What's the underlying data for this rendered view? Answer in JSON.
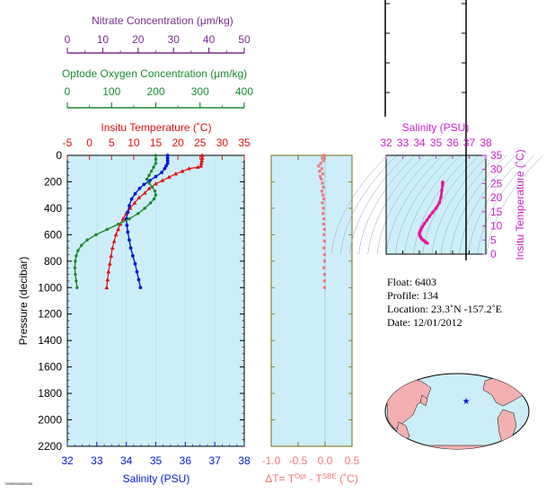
{
  "colors": {
    "panel_bg": "#cdeef8",
    "nitrate": "#7b2d8e",
    "oxygen": "#1a8a2e",
    "temperature": "#e0100f",
    "salinity": "#0019d6",
    "delta": "#f07878",
    "ts_curve": "#ee1199",
    "ts_axis": "#cc22cc",
    "olive": "#7a6a10"
  },
  "chart_data": [
    {
      "type": "line",
      "panel": "profile",
      "ylabel": "Pressure (decibar)",
      "ylim": [
        0,
        2200
      ],
      "yticks": [
        0,
        200,
        400,
        600,
        800,
        1000,
        1200,
        1400,
        1600,
        1800,
        2000,
        2200
      ],
      "axes": {
        "nitrate": {
          "label": "Nitrate Concentration (μm/kg)",
          "range": [
            0,
            50
          ],
          "ticks": [
            0,
            10,
            20,
            30,
            40,
            50
          ]
        },
        "oxygen": {
          "label": "Optode Oxygen Concentration (μm/kg)",
          "range": [
            0,
            400
          ],
          "ticks": [
            0,
            100,
            200,
            300,
            400
          ]
        },
        "temperature": {
          "label": "Insitu Temperature (˚C)",
          "range": [
            -5,
            35
          ],
          "ticks": [
            -5,
            0,
            5,
            10,
            15,
            20,
            25,
            30,
            35
          ]
        },
        "salinity": {
          "label": "Salinity (PSU)",
          "range": [
            32,
            38
          ],
          "ticks": [
            32,
            33,
            34,
            35,
            36,
            37,
            38
          ]
        }
      },
      "series": [
        {
          "key": "temperature",
          "axis": "temperature",
          "marker": "triangle",
          "points": [
            [
              25.5,
              0
            ],
            [
              25.5,
              20
            ],
            [
              25.4,
              40
            ],
            [
              25.3,
              60
            ],
            [
              25.2,
              80
            ],
            [
              24.5,
              90
            ],
            [
              22.5,
              100
            ],
            [
              21,
              120
            ],
            [
              19.5,
              140
            ],
            [
              18,
              165
            ],
            [
              16.5,
              190
            ],
            [
              15,
              215
            ],
            [
              13.5,
              250
            ],
            [
              12.5,
              285
            ],
            [
              11.2,
              320
            ],
            [
              10.2,
              360
            ],
            [
              9.2,
              400
            ],
            [
              8.3,
              440
            ],
            [
              7.6,
              480
            ],
            [
              7,
              520
            ],
            [
              6.5,
              560
            ],
            [
              6,
              600
            ],
            [
              5.6,
              650
            ],
            [
              5.2,
              700
            ],
            [
              4.9,
              760
            ],
            [
              4.6,
              820
            ],
            [
              4.3,
              880
            ],
            [
              4.1,
              940
            ],
            [
              3.9,
              1000
            ]
          ]
        },
        {
          "key": "salinity",
          "axis": "salinity",
          "marker": "dot",
          "points": [
            [
              35.4,
              0
            ],
            [
              35.4,
              20
            ],
            [
              35.4,
              40
            ],
            [
              35.4,
              60
            ],
            [
              35.35,
              80
            ],
            [
              35.3,
              100
            ],
            [
              35.2,
              130
            ],
            [
              35.0,
              160
            ],
            [
              34.8,
              190
            ],
            [
              34.6,
              220
            ],
            [
              34.45,
              250
            ],
            [
              34.3,
              290
            ],
            [
              34.18,
              330
            ],
            [
              34.1,
              380
            ],
            [
              34.05,
              430
            ],
            [
              34.0,
              480
            ],
            [
              34.02,
              530
            ],
            [
              34.05,
              580
            ],
            [
              34.1,
              640
            ],
            [
              34.15,
              700
            ],
            [
              34.22,
              760
            ],
            [
              34.3,
              820
            ],
            [
              34.36,
              880
            ],
            [
              34.42,
              940
            ],
            [
              34.48,
              1000
            ]
          ]
        },
        {
          "key": "oxygen",
          "axis": "oxygen",
          "marker": "dot",
          "points": [
            [
              200,
              0
            ],
            [
              200,
              30
            ],
            [
              200,
              60
            ],
            [
              195,
              90
            ],
            [
              190,
              120
            ],
            [
              185,
              150
            ],
            [
              180,
              180
            ],
            [
              185,
              210
            ],
            [
              192,
              240
            ],
            [
              198,
              270
            ],
            [
              200,
              300
            ],
            [
              196,
              330
            ],
            [
              188,
              360
            ],
            [
              175,
              400
            ],
            [
              160,
              440
            ],
            [
              140,
              480
            ],
            [
              115,
              520
            ],
            [
              90,
              560
            ],
            [
              65,
              600
            ],
            [
              45,
              640
            ],
            [
              32,
              680
            ],
            [
              24,
              720
            ],
            [
              20,
              760
            ],
            [
              18,
              800
            ],
            [
              17,
              850
            ],
            [
              18,
              900
            ],
            [
              20,
              950
            ],
            [
              22,
              1000
            ]
          ]
        }
      ]
    },
    {
      "type": "scatter",
      "panel": "delta_t",
      "xlabel": "ΔT= T",
      "xlabel_sup1": "Opt",
      "xlabel_mid": " - T",
      "xlabel_sup2": "SBE",
      "xlabel_end": " (˚C)",
      "xlim": [
        -1.0,
        0.5
      ],
      "xticks": [
        "-1.0",
        "-0.5",
        "0.0",
        "0.5"
      ],
      "ylim": [
        0,
        2200
      ],
      "points": [
        [
          -0.02,
          0
        ],
        [
          -0.05,
          20
        ],
        [
          -0.03,
          40
        ],
        [
          -0.08,
          60
        ],
        [
          -0.12,
          80
        ],
        [
          -0.06,
          100
        ],
        [
          -0.1,
          120
        ],
        [
          -0.04,
          140
        ],
        [
          -0.09,
          160
        ],
        [
          -0.07,
          180
        ],
        [
          -0.05,
          210
        ],
        [
          -0.03,
          240
        ],
        [
          -0.06,
          270
        ],
        [
          -0.04,
          300
        ],
        [
          -0.02,
          330
        ],
        [
          -0.05,
          360
        ],
        [
          -0.03,
          400
        ],
        [
          -0.04,
          440
        ],
        [
          -0.02,
          480
        ],
        [
          -0.03,
          520
        ],
        [
          -0.01,
          560
        ],
        [
          -0.02,
          600
        ],
        [
          -0.01,
          650
        ],
        [
          -0.02,
          700
        ],
        [
          -0.01,
          750
        ],
        [
          -0.01,
          800
        ],
        [
          -0.02,
          850
        ],
        [
          -0.01,
          900
        ],
        [
          -0.01,
          950
        ],
        [
          -0.01,
          1000
        ]
      ]
    },
    {
      "type": "line",
      "panel": "ts",
      "title": "Salinity (PSU)",
      "xlim": [
        32,
        38
      ],
      "xticks": [
        32,
        33,
        34,
        35,
        36,
        37,
        38
      ],
      "ylabel": "Insitu Temperature (˚C)",
      "ylim": [
        0,
        35
      ],
      "yticks": [
        0,
        5,
        10,
        15,
        20,
        25,
        30,
        35
      ],
      "points": [
        [
          34.48,
          3.9
        ],
        [
          34.42,
          4.1
        ],
        [
          34.36,
          4.4
        ],
        [
          34.3,
          4.7
        ],
        [
          34.22,
          5.0
        ],
        [
          34.15,
          5.4
        ],
        [
          34.1,
          5.8
        ],
        [
          34.05,
          6.3
        ],
        [
          34.02,
          6.8
        ],
        [
          34.0,
          7.4
        ],
        [
          34.05,
          8.1
        ],
        [
          34.1,
          8.8
        ],
        [
          34.18,
          9.7
        ],
        [
          34.3,
          10.8
        ],
        [
          34.45,
          12.0
        ],
        [
          34.6,
          13.3
        ],
        [
          34.8,
          14.8
        ],
        [
          35.0,
          16.3
        ],
        [
          35.2,
          18.2
        ],
        [
          35.3,
          20.2
        ],
        [
          35.35,
          22.5
        ],
        [
          35.4,
          24.5
        ],
        [
          35.4,
          25.3
        ],
        [
          35.4,
          25.5
        ]
      ]
    }
  ],
  "info": {
    "float": "Float:  6403",
    "profile": "Profile:  134",
    "location": "Location:  23.3˚N  -157.2˚E",
    "date": "Date:  12/01/2012"
  },
  "footnote": "79990000000000",
  "map": {
    "marker_lon": -157.2,
    "marker_lat": 23.3
  }
}
